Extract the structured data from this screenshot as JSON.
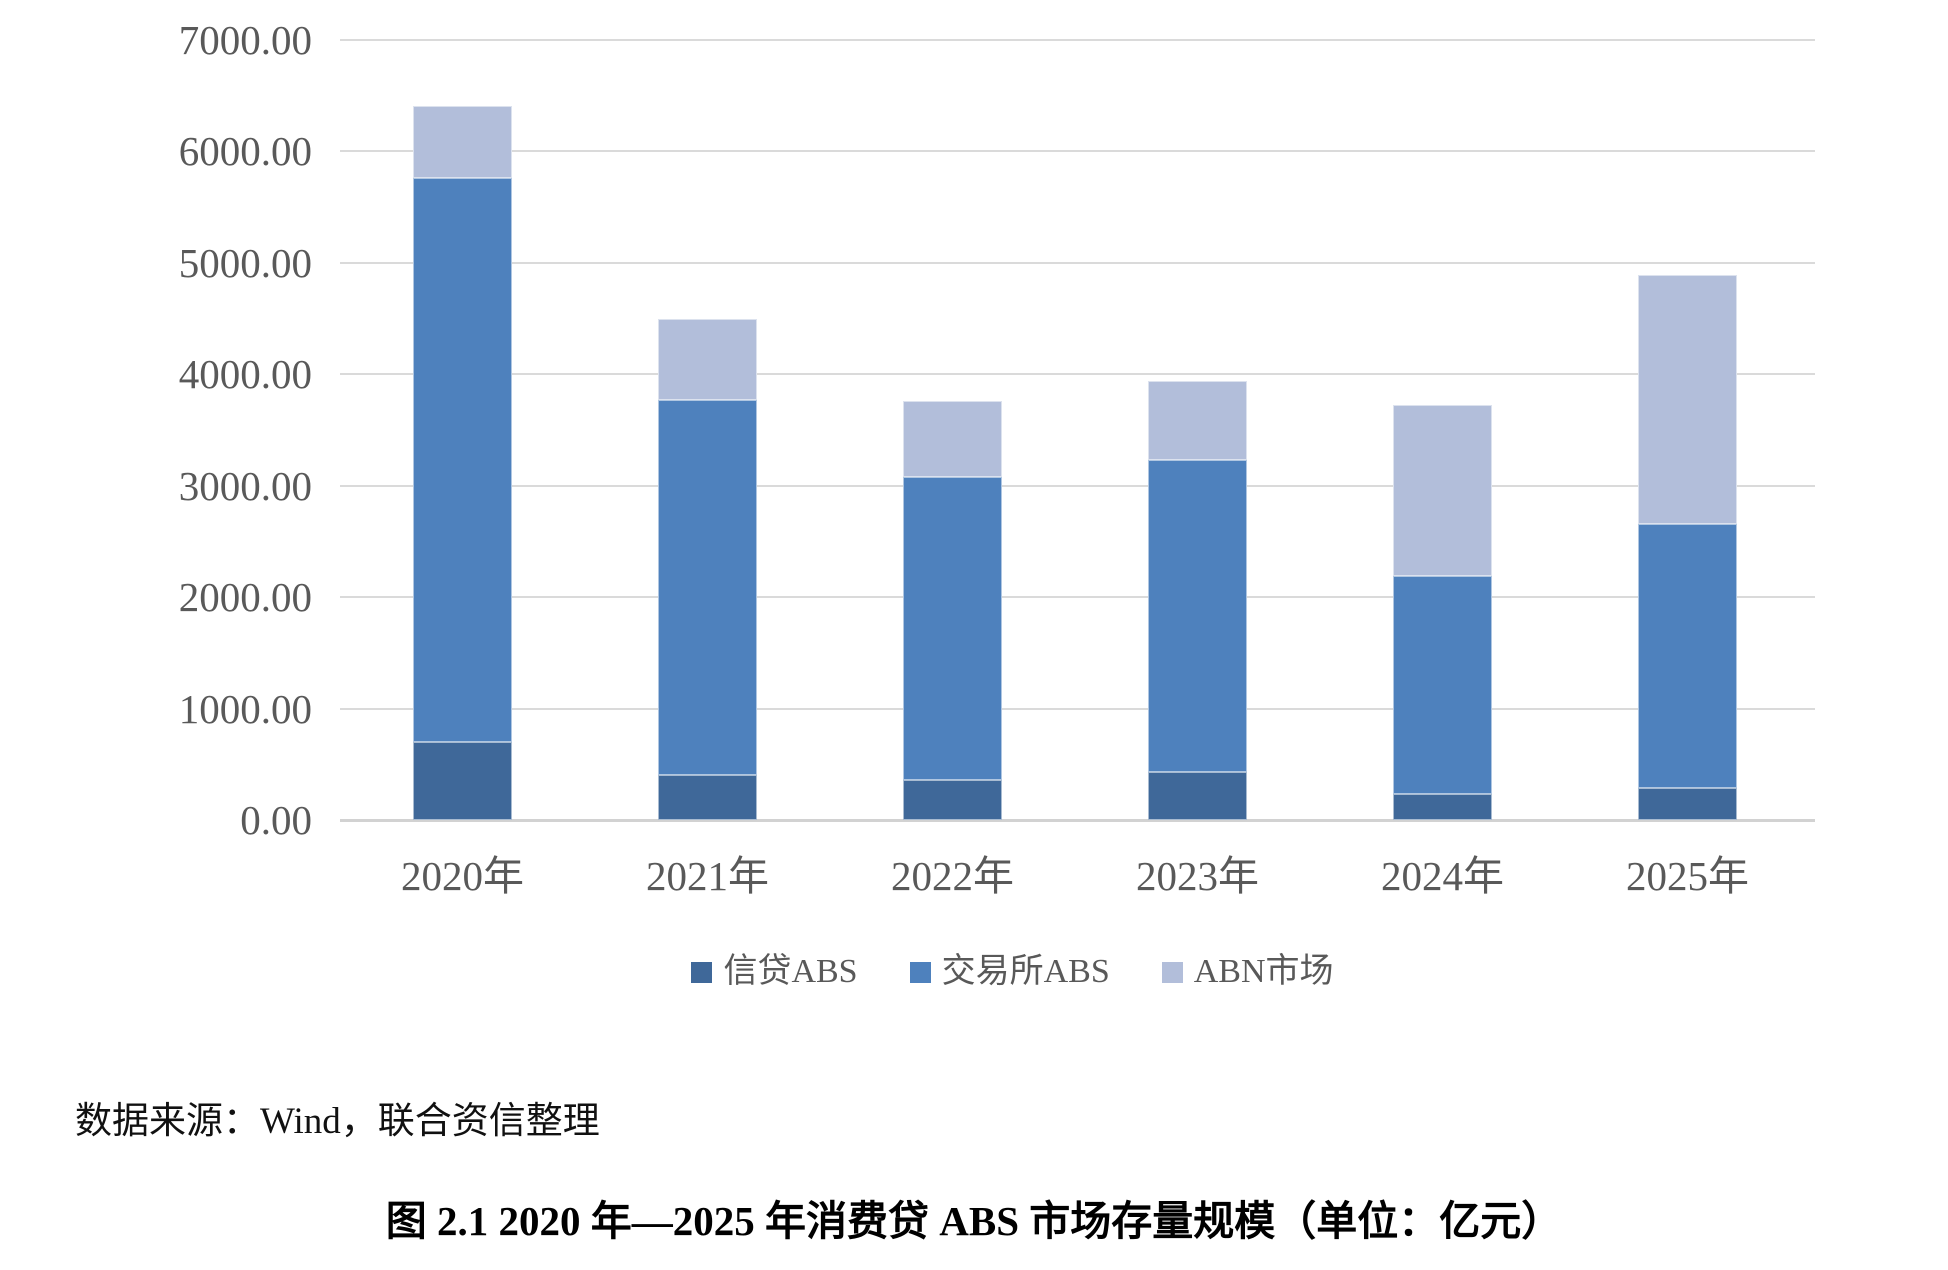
{
  "chart_data": {
    "type": "bar",
    "stacked": true,
    "title": "",
    "xlabel": "",
    "ylabel": "",
    "categories": [
      "2020年",
      "2021年",
      "2022年",
      "2023年",
      "2024年",
      "2025年"
    ],
    "series": [
      {
        "name": "信贷ABS",
        "color": "#3F6899",
        "values": [
          700,
          400,
          360,
          430,
          230,
          290
        ]
      },
      {
        "name": "交易所ABS",
        "color": "#4E81BD",
        "values": [
          5060,
          3370,
          2720,
          2800,
          1960,
          2370
        ]
      },
      {
        "name": "ABN市场",
        "color": "#B2BEDA",
        "values": [
          650,
          730,
          680,
          710,
          1530,
          2230
        ]
      }
    ],
    "stack_totals": [
      6410,
      4500,
      3760,
      3940,
      3720,
      4890
    ],
    "ylim": [
      0,
      7000
    ],
    "ytick_step": 1000,
    "ytick_labels": [
      "0.00",
      "1000.00",
      "2000.00",
      "3000.00",
      "4000.00",
      "5000.00",
      "6000.00",
      "7000.00"
    ],
    "grid": true,
    "grid_color": "#DADADA",
    "axis_text_color": "#595959",
    "legend_position": "bottom"
  },
  "source_note": "数据来源：Wind，联合资信整理",
  "caption": "图 2.1   2020 年—2025 年消费贷 ABS 市场存量规模（单位：亿元）"
}
